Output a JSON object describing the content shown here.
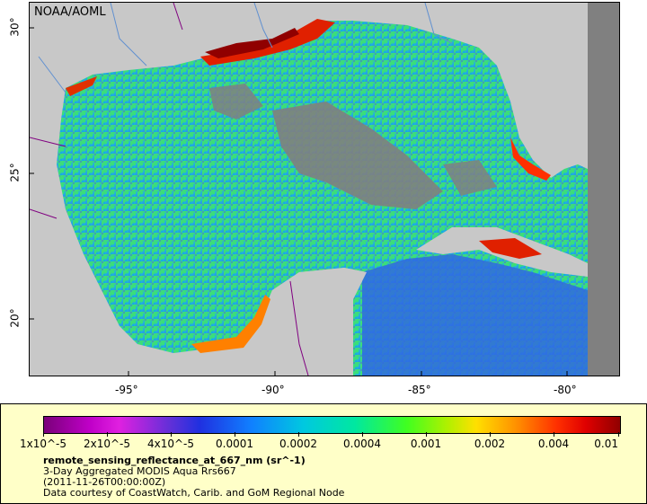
{
  "map": {
    "watermark": "NOAA/AOML",
    "x_ticks": [
      "-95°",
      "-90°",
      "-85°",
      "-80°"
    ],
    "y_ticks": [
      "30°",
      "25°",
      "20°"
    ]
  },
  "legend": {
    "colorbar_labels": [
      "1x10^-5",
      "2x10^-5",
      "4x10^-5",
      "0.0001",
      "0.0002",
      "0.0004",
      "0.001",
      "0.002",
      "0.004",
      "0.01"
    ],
    "variable": "remote_sensing_reflectance_at_667_nm (sr^-1)",
    "dataset": "3-Day Aggregated MODIS Aqua Rrs667",
    "date": "(2011-11-26T00:00:00Z)",
    "credit": "Data courtesy of CoastWatch, Carib. and GoM Regional Node"
  },
  "colors": {
    "land": "#c8c8c8",
    "no_data": "#808080",
    "borders": "#800080",
    "rivers": "#6090d0"
  }
}
